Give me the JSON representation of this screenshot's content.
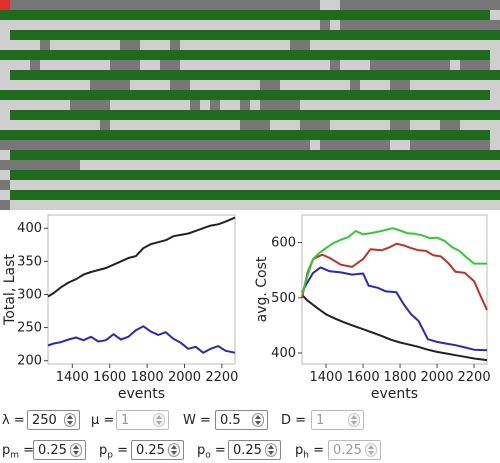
{
  "colors": {
    "green": "#1e6b1e",
    "dark_gray": "#777777",
    "light_gray": "#cfcfcf",
    "red": "#e03030"
  },
  "chart_data": [
    {
      "type": "line",
      "xlabel": "events",
      "ylabel": "Total, Last",
      "xlim": [
        1270,
        2270
      ],
      "ylim": [
        195,
        420
      ],
      "xticks": [
        1400,
        1600,
        1800,
        2000,
        2200
      ],
      "yticks": [
        200,
        250,
        300,
        350,
        400
      ],
      "series": [
        {
          "color": "#222222",
          "x": [
            1270,
            1300,
            1340,
            1380,
            1420,
            1460,
            1500,
            1540,
            1580,
            1620,
            1660,
            1700,
            1740,
            1780,
            1820,
            1860,
            1900,
            1940,
            1980,
            2020,
            2060,
            2100,
            2140,
            2180,
            2220,
            2270
          ],
          "y": [
            297,
            302,
            311,
            318,
            323,
            330,
            334,
            337,
            340,
            345,
            350,
            355,
            358,
            370,
            376,
            379,
            382,
            388,
            390,
            392,
            396,
            400,
            404,
            406,
            410,
            416
          ]
        },
        {
          "color": "#2a2ab4",
          "x": [
            1270,
            1300,
            1340,
            1380,
            1420,
            1460,
            1500,
            1540,
            1580,
            1620,
            1660,
            1700,
            1740,
            1780,
            1820,
            1860,
            1900,
            1940,
            1980,
            2020,
            2060,
            2100,
            2140,
            2180,
            2220,
            2270
          ],
          "y": [
            223,
            226,
            228,
            232,
            235,
            231,
            236,
            229,
            231,
            240,
            232,
            236,
            246,
            252,
            244,
            239,
            243,
            233,
            227,
            218,
            221,
            212,
            218,
            222,
            215,
            212
          ]
        }
      ]
    },
    {
      "type": "line",
      "xlabel": "events",
      "ylabel": "avg. Cost",
      "xlim": [
        1270,
        2270
      ],
      "ylim": [
        380,
        650
      ],
      "xticks": [
        1400,
        1600,
        1800,
        2000,
        2200
      ],
      "yticks": [
        400,
        500,
        600
      ],
      "series": [
        {
          "color": "#222222",
          "x": [
            1270,
            1300,
            1350,
            1400,
            1450,
            1500,
            1550,
            1600,
            1650,
            1700,
            1750,
            1800,
            1850,
            1900,
            1950,
            2000,
            2050,
            2100,
            2150,
            2200,
            2270
          ],
          "y": [
            505,
            495,
            482,
            470,
            462,
            455,
            449,
            443,
            437,
            431,
            424,
            419,
            415,
            411,
            406,
            402,
            399,
            396,
            393,
            390,
            387
          ]
        },
        {
          "color": "#2a2ab4",
          "x": [
            1270,
            1300,
            1330,
            1370,
            1420,
            1480,
            1540,
            1600,
            1630,
            1680,
            1720,
            1780,
            1820,
            1860,
            1900,
            1950,
            2000,
            2050,
            2100,
            2150,
            2200,
            2270
          ],
          "y": [
            510,
            528,
            545,
            555,
            548,
            546,
            542,
            544,
            522,
            518,
            512,
            510,
            488,
            470,
            458,
            425,
            420,
            417,
            414,
            410,
            406,
            405
          ]
        },
        {
          "color": "#c0302a",
          "x": [
            1270,
            1300,
            1330,
            1380,
            1420,
            1480,
            1540,
            1600,
            1640,
            1700,
            1740,
            1780,
            1820,
            1860,
            1900,
            1940,
            1980,
            2020,
            2060,
            2100,
            2150,
            2200,
            2240,
            2270
          ],
          "y": [
            500,
            545,
            570,
            578,
            572,
            560,
            556,
            570,
            588,
            586,
            591,
            598,
            595,
            590,
            586,
            585,
            577,
            575,
            563,
            547,
            545,
            530,
            500,
            478
          ]
        },
        {
          "color": "#33c833",
          "x": [
            1270,
            1300,
            1330,
            1360,
            1400,
            1440,
            1480,
            1520,
            1560,
            1600,
            1640,
            1700,
            1760,
            1800,
            1840,
            1880,
            1920,
            1960,
            2000,
            2040,
            2080,
            2120,
            2160,
            2200,
            2240,
            2270
          ],
          "y": [
            506,
            540,
            570,
            580,
            590,
            599,
            605,
            610,
            621,
            615,
            617,
            621,
            626,
            622,
            617,
            616,
            613,
            608,
            609,
            603,
            592,
            585,
            573,
            562,
            562,
            562
          ]
        }
      ]
    }
  ],
  "controls": {
    "row1": [
      {
        "label": "λ =",
        "value": "250",
        "disabled": false
      },
      {
        "label": "μ =",
        "value": "1",
        "disabled": true
      },
      {
        "label": "W =",
        "value": "0.5",
        "disabled": false
      },
      {
        "label": "D =",
        "value": "1",
        "disabled": true
      }
    ],
    "row2": [
      {
        "label_p": "p",
        "label_sub": "m",
        "label_eq": " =",
        "value": "0.25",
        "disabled": false
      },
      {
        "label_p": "p",
        "label_sub": "p",
        "label_eq": " =",
        "value": "0.25",
        "disabled": false
      },
      {
        "label_p": "p",
        "label_sub": "o",
        "label_eq": " =",
        "value": "0.25",
        "disabled": false
      },
      {
        "label_p": "p",
        "label_sub": "h",
        "label_eq": " =",
        "value": "0.25",
        "disabled": true
      }
    ]
  }
}
